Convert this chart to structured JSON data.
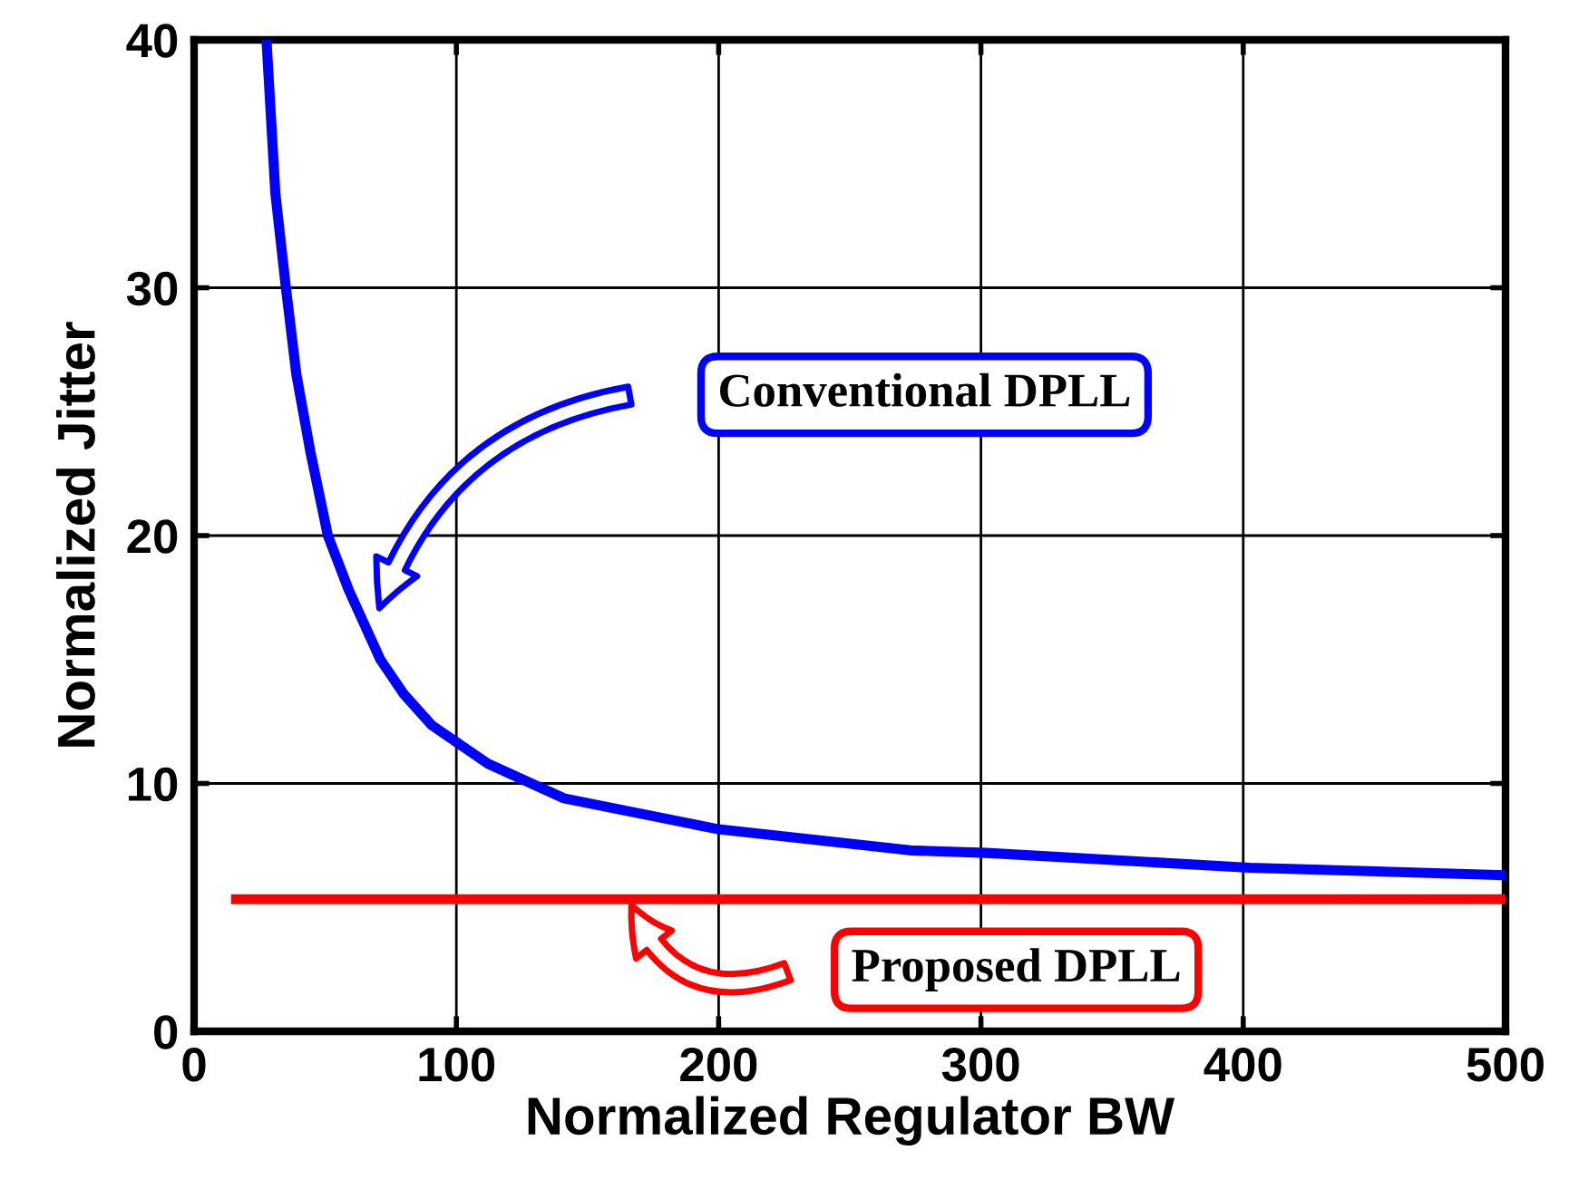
{
  "chart_data": {
    "type": "line",
    "xlabel": "Normalized Regulator BW",
    "ylabel": "Normalized Jitter",
    "xlim": [
      0,
      500
    ],
    "ylim": [
      0,
      40
    ],
    "xticks": [
      0,
      100,
      200,
      300,
      400,
      500
    ],
    "yticks": [
      0,
      10,
      20,
      30,
      40
    ],
    "grid": true,
    "legend": false,
    "marker": "none",
    "line_style": "solid",
    "series": [
      {
        "color": "#0000ff",
        "x": [
          27.6,
          31,
          35,
          39,
          44.3,
          51,
          59,
          71,
          80,
          90.6,
          112,
          141,
          200,
          273,
          302,
          402.6,
          500
        ],
        "values": [
          40,
          33.8,
          30,
          26.5,
          23.4,
          20,
          17.8,
          15,
          13.6,
          12.35,
          10.8,
          9.4,
          8.15,
          7.3,
          7.2,
          6.6,
          6.3
        ]
      },
      {
        "color": "#ff0000",
        "x": [
          16,
          500
        ],
        "values": [
          5.33,
          5.33
        ]
      }
    ],
    "annotations": [
      "Conventional DPLL",
      "Proposed DPLL"
    ]
  }
}
